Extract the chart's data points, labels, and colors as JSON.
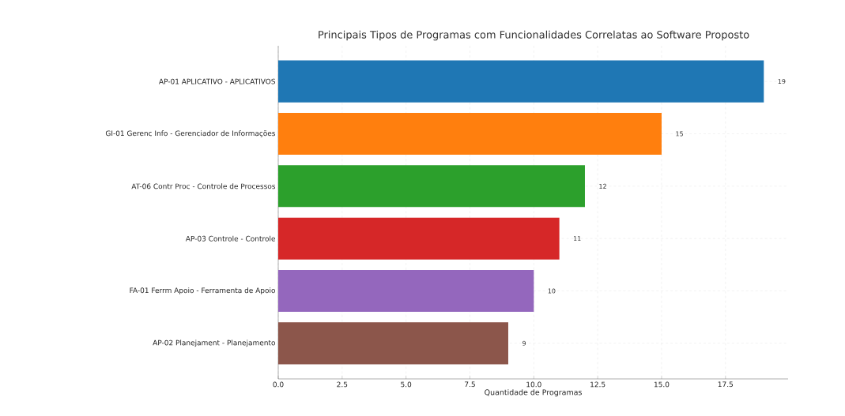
{
  "chart_data": {
    "type": "bar",
    "orientation": "horizontal",
    "title": "Principais Tipos de Programas com Funcionalidades Correlatas ao Software Proposto",
    "xlabel": "Quantidade de Programas",
    "categories": [
      "AP-01 APLICATIVO - APLICATIVOS",
      "GI-01 Gerenc Info - Gerenciador de Informações",
      "AT-06 Contr Proc - Controle de Processos",
      "AP-03 Controle - Controle",
      "FA-01 Ferrm Apoio - Ferramenta de Apoio",
      "AP-02 Planejament - Planejamento"
    ],
    "values": [
      19,
      15,
      12,
      11,
      10,
      9
    ],
    "colors": [
      "#1f77b4",
      "#ff7f0e",
      "#2ca02c",
      "#d62728",
      "#9467bd",
      "#8c564b"
    ],
    "xlim": [
      0,
      19.95
    ],
    "xticks": [
      {
        "value": 0,
        "label": "0.0"
      },
      {
        "value": 2.5,
        "label": "2.5"
      },
      {
        "value": 5,
        "label": "5.0"
      },
      {
        "value": 7.5,
        "label": "7.5"
      },
      {
        "value": 10,
        "label": "10.0"
      },
      {
        "value": 12.5,
        "label": "12.5"
      },
      {
        "value": 15,
        "label": "15.0"
      },
      {
        "value": 17.5,
        "label": "17.5"
      }
    ],
    "grid": true,
    "data_labels": true
  }
}
